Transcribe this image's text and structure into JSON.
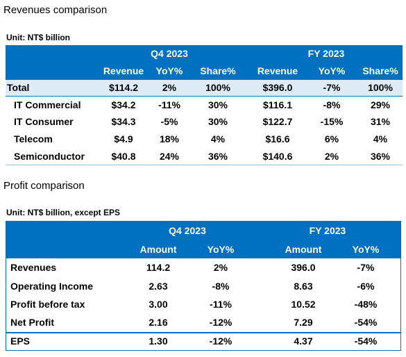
{
  "revenues": {
    "title": "Revenues comparison",
    "unit": "Unit: NT$ billion",
    "groups": [
      "Q4 2023",
      "FY 2023"
    ],
    "columns": [
      "Revenue",
      "YoY%",
      "Share%",
      "Revenue",
      "YoY%",
      "Share%"
    ],
    "rows": [
      [
        "Total",
        "$114.2",
        "2%",
        "100%",
        "$396.0",
        "-7%",
        "100%"
      ],
      [
        "IT Commercial",
        "$34.2",
        "-11%",
        "30%",
        "$116.1",
        "-8%",
        "29%"
      ],
      [
        "IT Consumer",
        "$34.3",
        "-5%",
        "30%",
        "$122.7",
        "-15%",
        "31%"
      ],
      [
        "Telecom",
        "$4.9",
        "18%",
        "4%",
        "$16.6",
        "6%",
        "4%"
      ],
      [
        "Semiconductor",
        "$40.8",
        "24%",
        "36%",
        "$140.6",
        "2%",
        "36%"
      ]
    ]
  },
  "profit": {
    "title": "Profit comparison",
    "unit": "Unit: NT$ billion, except EPS",
    "groups": [
      "Q4 2023",
      "FY 2023"
    ],
    "columns": [
      "Amount",
      "YoY%",
      "Amount",
      "YoY%"
    ],
    "rows": [
      [
        "Revenues",
        "114.2",
        "2%",
        "396.0",
        "-7%"
      ],
      [
        "Operating Income",
        "2.63",
        "-8%",
        "8.63",
        "-6%"
      ],
      [
        "Profit before tax",
        "3.00",
        "-11%",
        "10.52",
        "-48%"
      ],
      [
        "Net Profit",
        "2.16",
        "-12%",
        "7.29",
        "-54%"
      ],
      [
        "EPS",
        "1.30",
        "-12%",
        "4.37",
        "-54%"
      ]
    ]
  }
}
